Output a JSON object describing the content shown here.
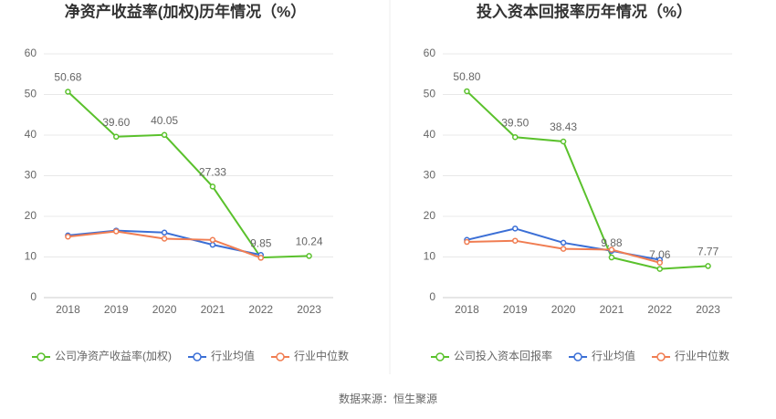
{
  "chart_data": [
    {
      "type": "line",
      "title": "净资产收益率(加权)历年情况（%）",
      "categories": [
        "2018",
        "2019",
        "2020",
        "2021",
        "2022",
        "2023"
      ],
      "ylim": [
        0,
        60
      ],
      "yticks": [
        0,
        10,
        20,
        30,
        40,
        50,
        60
      ],
      "grid": true,
      "series": [
        {
          "name": "公司净资产收益率(加权)",
          "color": "#5ac12c",
          "values": [
            50.68,
            39.6,
            40.05,
            27.33,
            9.85,
            10.24
          ],
          "value_labels": [
            "50.68",
            "39.60",
            "40.05",
            "27.33",
            "9.85",
            "10.24"
          ]
        },
        {
          "name": "行业均值",
          "color": "#3b6fd6",
          "values": [
            15.3,
            16.5,
            16.0,
            13.0,
            10.5,
            null
          ]
        },
        {
          "name": "行业中位数",
          "color": "#f07d52",
          "values": [
            15.0,
            16.3,
            14.5,
            14.2,
            9.8,
            null
          ]
        }
      ]
    },
    {
      "type": "line",
      "title": "投入资本回报率历年情况（%）",
      "categories": [
        "2018",
        "2019",
        "2020",
        "2021",
        "2022",
        "2023"
      ],
      "ylim": [
        0,
        60
      ],
      "yticks": [
        0,
        10,
        20,
        30,
        40,
        50,
        60
      ],
      "grid": true,
      "series": [
        {
          "name": "公司投入资本回报率",
          "color": "#5ac12c",
          "values": [
            50.8,
            39.5,
            38.43,
            9.88,
            7.06,
            7.77
          ],
          "value_labels": [
            "50.80",
            "39.50",
            "38.43",
            "9.88",
            "7.06",
            "7.77"
          ]
        },
        {
          "name": "行业均值",
          "color": "#3b6fd6",
          "values": [
            14.2,
            17.0,
            13.5,
            11.5,
            9.3,
            null
          ]
        },
        {
          "name": "行业中位数",
          "color": "#f07d52",
          "values": [
            13.7,
            14.0,
            12.0,
            11.8,
            8.6,
            null
          ]
        }
      ]
    }
  ],
  "source": "数据来源：恒生聚源"
}
